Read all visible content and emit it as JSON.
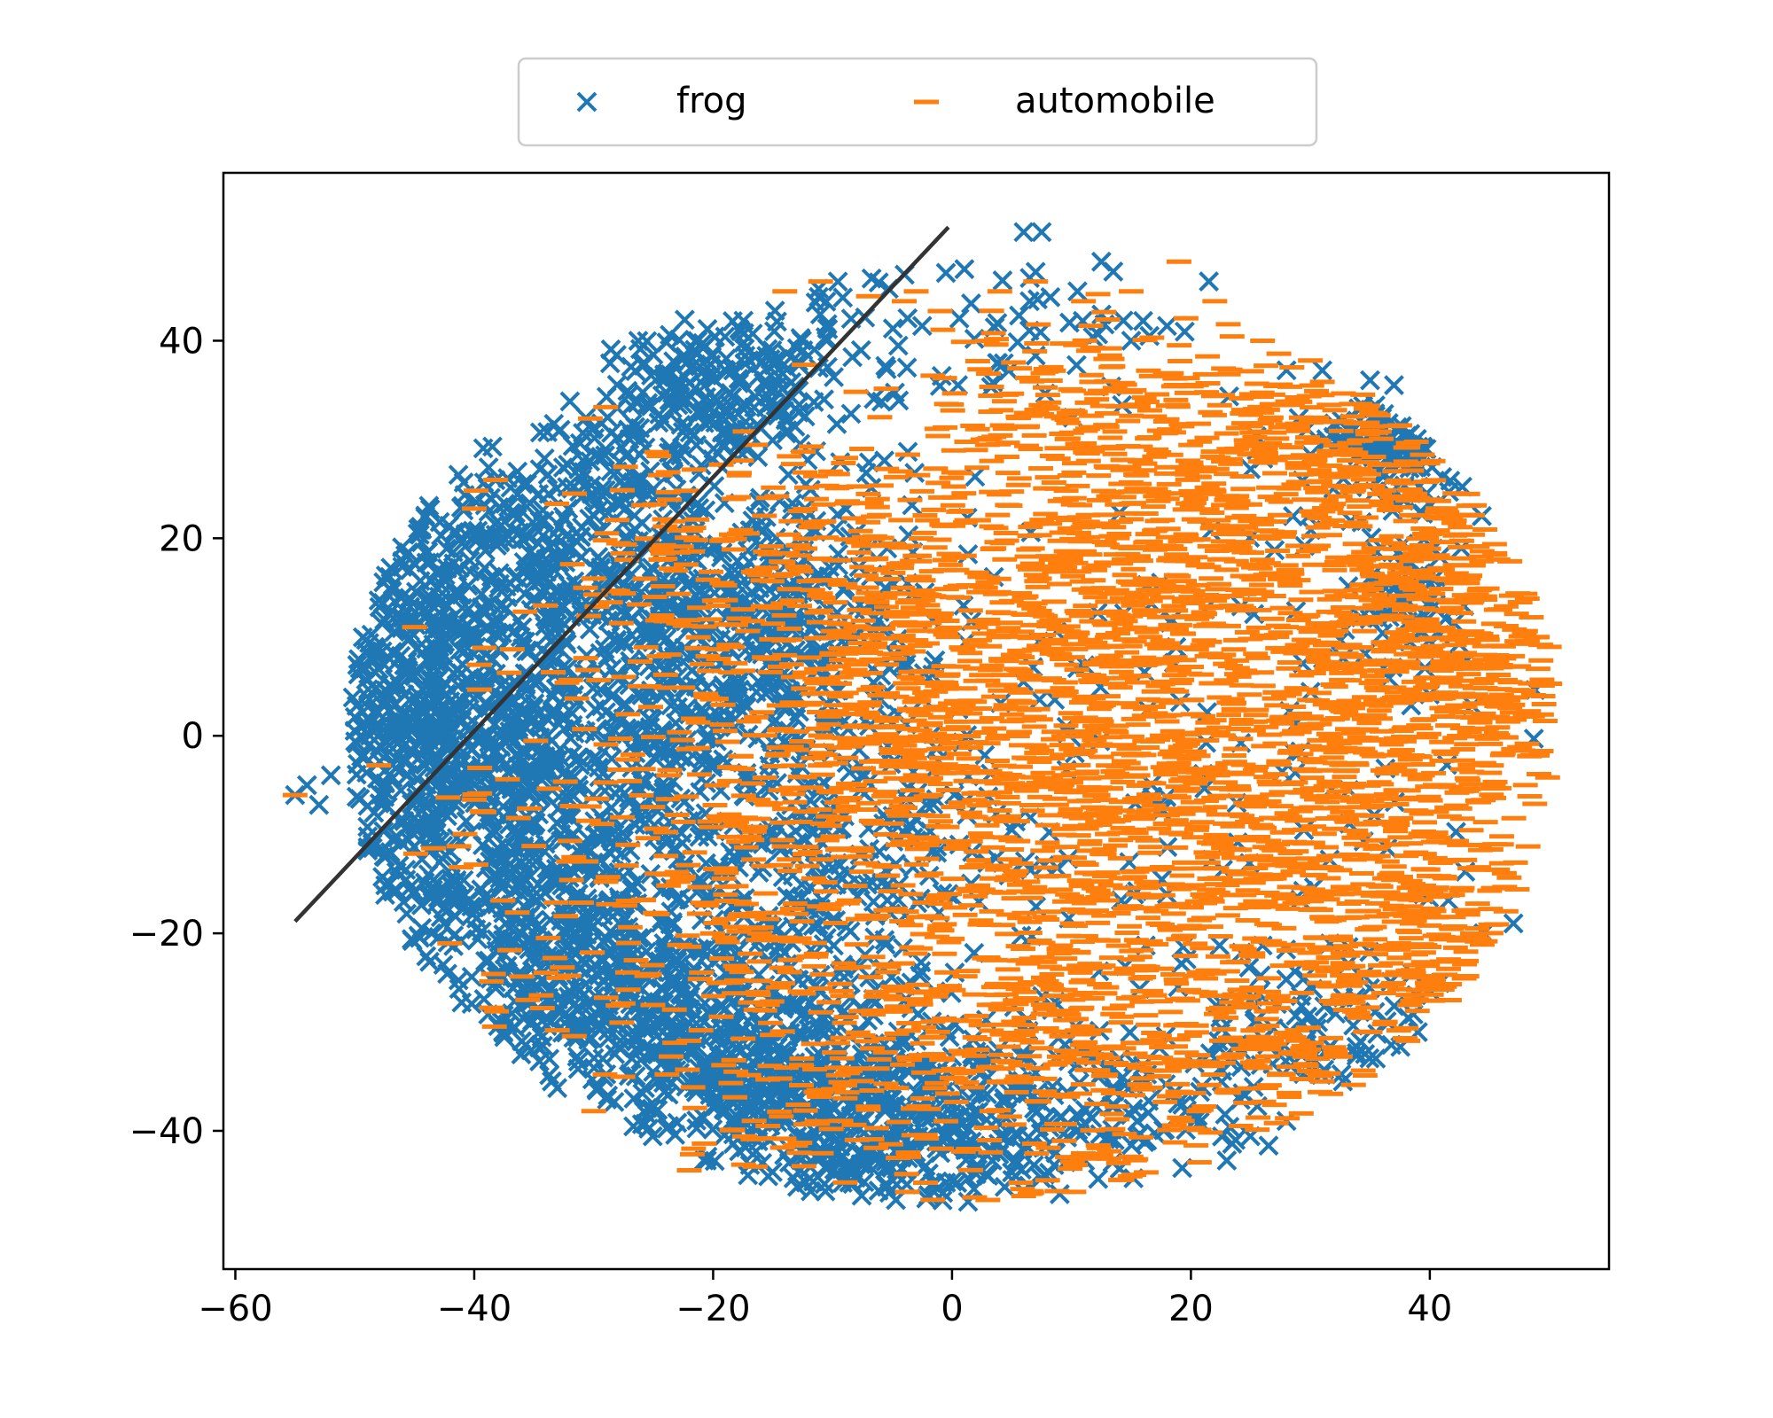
{
  "chart_data": {
    "type": "scatter",
    "title": "",
    "xlabel": "",
    "ylabel": "",
    "xlim": [
      -61,
      55
    ],
    "ylim": [
      -54,
      57
    ],
    "x_ticks": [
      -60,
      -40,
      -20,
      0,
      20,
      40
    ],
    "y_ticks": [
      -40,
      -20,
      0,
      20,
      40
    ],
    "x_tick_labels": [
      "−60",
      "−40",
      "−20",
      "0",
      "20",
      "40"
    ],
    "y_tick_labels": [
      "−40",
      "−20",
      "0",
      "20",
      "40"
    ],
    "grid": false,
    "legend": {
      "position": "top-center",
      "ncol": 2
    },
    "series": [
      {
        "name": "frog",
        "marker": "x",
        "color": "#1f77b4",
        "clusters": [
          {
            "cx": -44,
            "cy": 6,
            "sx": 6,
            "sy": 12,
            "n": 520
          },
          {
            "cx": -38,
            "cy": -8,
            "sx": 9,
            "sy": 10,
            "n": 520
          },
          {
            "cx": -28,
            "cy": -25,
            "sx": 9,
            "sy": 8,
            "n": 420
          },
          {
            "cx": -18,
            "cy": -33,
            "sx": 8,
            "sy": 6,
            "n": 320
          },
          {
            "cx": -8,
            "cy": -38,
            "sx": 8,
            "sy": 5,
            "n": 260
          },
          {
            "cx": -30,
            "cy": 20,
            "sx": 7,
            "sy": 7,
            "n": 300
          },
          {
            "cx": -20,
            "cy": 36,
            "sx": 5,
            "sy": 5,
            "n": 220
          },
          {
            "cx": -22,
            "cy": 6,
            "sx": 8,
            "sy": 8,
            "n": 320
          },
          {
            "cx": -12,
            "cy": 15,
            "sx": 6,
            "sy": 7,
            "n": 180
          },
          {
            "cx": -10,
            "cy": -10,
            "sx": 7,
            "sy": 7,
            "n": 220
          },
          {
            "cx": 2,
            "cy": -42,
            "sx": 8,
            "sy": 4,
            "n": 140
          },
          {
            "cx": 12,
            "cy": -36,
            "sx": 8,
            "sy": 4,
            "n": 110
          },
          {
            "cx": 38,
            "cy": 30,
            "sx": 4,
            "sy": 3,
            "n": 110
          },
          {
            "cx": 38,
            "cy": 14,
            "sx": 3,
            "sy": 4,
            "n": 70
          },
          {
            "cx": 30,
            "cy": -30,
            "sx": 7,
            "sy": 4,
            "n": 80
          },
          {
            "cx": 0,
            "cy": 42,
            "sx": 9,
            "sy": 5,
            "n": 60
          },
          {
            "cx": 20,
            "cy": -5,
            "sx": 18,
            "sy": 18,
            "n": 160
          }
        ],
        "points": [
          [
            6,
            51
          ],
          [
            7.5,
            51
          ],
          [
            12.5,
            48
          ],
          [
            13.5,
            47
          ],
          [
            21.5,
            46
          ],
          [
            10.5,
            45
          ],
          [
            6.5,
            44
          ],
          [
            7,
            38.5
          ],
          [
            18,
            41.5
          ],
          [
            16,
            42
          ],
          [
            15,
            40
          ],
          [
            25,
            27
          ],
          [
            31,
            37
          ],
          [
            28,
            37
          ],
          [
            37,
            35.5
          ],
          [
            35,
            36
          ],
          [
            -55,
            -6
          ],
          [
            -54,
            -5
          ],
          [
            -53,
            -7
          ],
          [
            -52,
            -4
          ],
          [
            39,
            -30
          ],
          [
            44.5,
            -20
          ],
          [
            47,
            -19
          ],
          [
            -10.5,
            40
          ],
          [
            -2.5,
            41.5
          ],
          [
            -4.5,
            39.5
          ],
          [
            0.5,
            35.5
          ],
          [
            17.5,
            15.5
          ],
          [
            26.5,
            -41.5
          ],
          [
            28,
            -39
          ],
          [
            23,
            -43
          ]
        ]
      },
      {
        "name": "automobile",
        "marker": "_",
        "color": "#ff7f0e",
        "clusters": [
          {
            "cx": 5,
            "cy": 10,
            "sx": 9,
            "sy": 8,
            "n": 420
          },
          {
            "cx": 25,
            "cy": 5,
            "sx": 12,
            "sy": 10,
            "n": 520
          },
          {
            "cx": 38,
            "cy": 18,
            "sx": 6,
            "sy": 9,
            "n": 320
          },
          {
            "cx": 30,
            "cy": -12,
            "sx": 10,
            "sy": 10,
            "n": 520
          },
          {
            "cx": 10,
            "cy": -12,
            "sx": 9,
            "sy": 9,
            "n": 420
          },
          {
            "cx": 5,
            "cy": -30,
            "sx": 9,
            "sy": 6,
            "n": 320
          },
          {
            "cx": 20,
            "cy": 25,
            "sx": 9,
            "sy": 7,
            "n": 320
          },
          {
            "cx": 10,
            "cy": 32,
            "sx": 8,
            "sy": 5,
            "n": 180
          },
          {
            "cx": -10,
            "cy": 18,
            "sx": 7,
            "sy": 6,
            "n": 200
          },
          {
            "cx": -5,
            "cy": 0,
            "sx": 6,
            "sy": 6,
            "n": 200
          },
          {
            "cx": -18,
            "cy": -8,
            "sx": 8,
            "sy": 6,
            "n": 160
          },
          {
            "cx": -15,
            "cy": -22,
            "sx": 7,
            "sy": 6,
            "n": 130
          },
          {
            "cx": 40,
            "cy": -22,
            "sx": 5,
            "sy": 5,
            "n": 150
          },
          {
            "cx": 25,
            "cy": -32,
            "sx": 7,
            "sy": 4,
            "n": 130
          },
          {
            "cx": 44,
            "cy": 6,
            "sx": 4,
            "sy": 6,
            "n": 170
          },
          {
            "cx": 30,
            "cy": 32,
            "sx": 6,
            "sy": 3,
            "n": 90
          },
          {
            "cx": -25,
            "cy": 15,
            "sx": 6,
            "sy": 8,
            "n": 110
          },
          {
            "cx": -35,
            "cy": -15,
            "sx": 6,
            "sy": 12,
            "n": 60
          },
          {
            "cx": -12,
            "cy": -40,
            "sx": 6,
            "sy": 3,
            "n": 60
          },
          {
            "cx": 12,
            "cy": -44,
            "sx": 7,
            "sy": 3,
            "n": 50
          }
        ],
        "points": [
          [
            -11,
            46
          ],
          [
            -14,
            45
          ],
          [
            -4,
            44
          ],
          [
            -1,
            43
          ],
          [
            4,
            45
          ],
          [
            7,
            46
          ],
          [
            11,
            44
          ],
          [
            15,
            45
          ],
          [
            19,
            48
          ],
          [
            22,
            44
          ],
          [
            49,
            10
          ],
          [
            50,
            9
          ],
          [
            48.5,
            12
          ],
          [
            47,
            7
          ],
          [
            -55,
            -6
          ],
          [
            -40,
            23
          ],
          [
            -45,
            11
          ],
          [
            -48,
            -3
          ],
          [
            -34,
            -24
          ],
          [
            -30,
            -38
          ],
          [
            -22,
            -44
          ],
          [
            3,
            -47
          ],
          [
            8,
            -45
          ],
          [
            -11,
            -28
          ],
          [
            48,
            -5
          ],
          [
            46,
            -11
          ],
          [
            44,
            -17
          ],
          [
            30,
            38
          ],
          [
            26,
            40
          ],
          [
            35,
            -30
          ],
          [
            -7,
            44.5
          ],
          [
            -3,
            45
          ]
        ]
      }
    ],
    "annotations": [
      {
        "type": "line",
        "color": "#333333",
        "x": [
          -55,
          -0.3
        ],
        "y": [
          -18.8,
          51.5
        ]
      }
    ]
  }
}
